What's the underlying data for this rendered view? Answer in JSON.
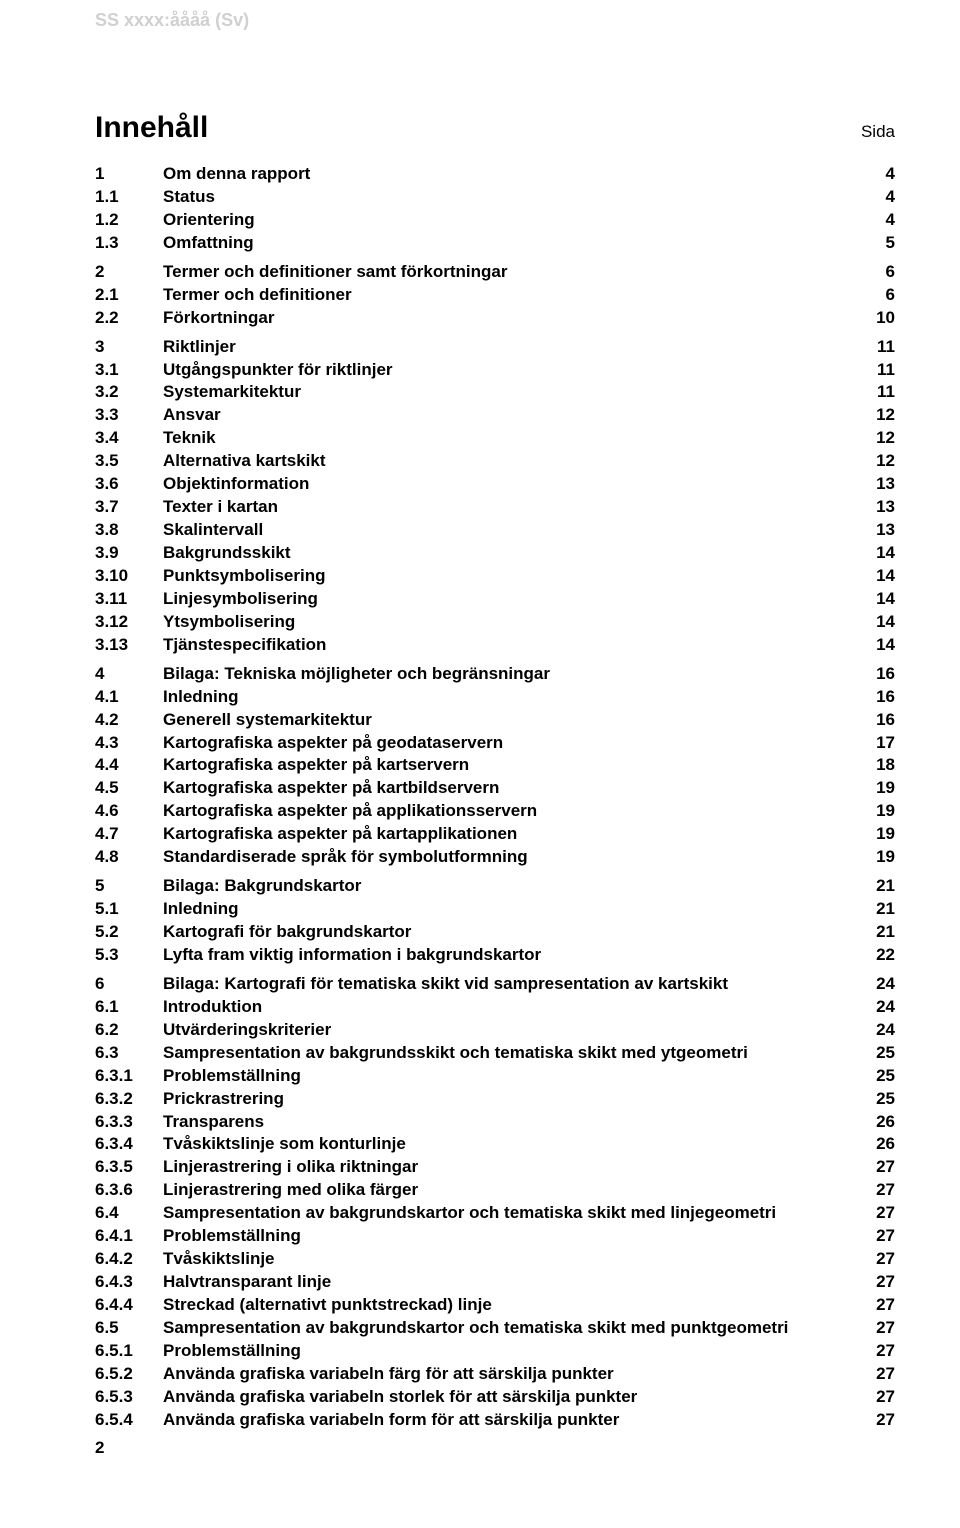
{
  "doc_id": "SS xxxx:åååå (Sv)",
  "heading": "Innehåll",
  "sida_label": "Sida",
  "page_number": "2",
  "groups": [
    {
      "entries": [
        {
          "num": "1",
          "title": "Om denna rapport",
          "page": "4"
        },
        {
          "num": "1.1",
          "title": "Status",
          "page": "4"
        },
        {
          "num": "1.2",
          "title": "Orientering",
          "page": "4"
        },
        {
          "num": "1.3",
          "title": "Omfattning",
          "page": "5"
        }
      ]
    },
    {
      "entries": [
        {
          "num": "2",
          "title": "Termer och definitioner samt förkortningar",
          "page": "6"
        },
        {
          "num": "2.1",
          "title": "Termer och definitioner",
          "page": "6"
        },
        {
          "num": "2.2",
          "title": "Förkortningar",
          "page": "10"
        }
      ]
    },
    {
      "entries": [
        {
          "num": "3",
          "title": "Riktlinjer",
          "page": "11"
        },
        {
          "num": "3.1",
          "title": "Utgångspunkter för riktlinjer",
          "page": "11"
        },
        {
          "num": "3.2",
          "title": "Systemarkitektur",
          "page": "11"
        },
        {
          "num": "3.3",
          "title": "Ansvar",
          "page": "12"
        },
        {
          "num": "3.4",
          "title": "Teknik",
          "page": "12"
        },
        {
          "num": "3.5",
          "title": "Alternativa kartskikt",
          "page": "12"
        },
        {
          "num": "3.6",
          "title": "Objektinformation",
          "page": "13"
        },
        {
          "num": "3.7",
          "title": "Texter i kartan",
          "page": "13"
        },
        {
          "num": "3.8",
          "title": "Skalintervall",
          "page": "13"
        },
        {
          "num": "3.9",
          "title": "Bakgrundsskikt",
          "page": "14"
        },
        {
          "num": "3.10",
          "title": "Punktsymbolisering",
          "page": "14"
        },
        {
          "num": "3.11",
          "title": "Linjesymbolisering",
          "page": "14"
        },
        {
          "num": "3.12",
          "title": "Ytsymbolisering",
          "page": "14"
        },
        {
          "num": "3.13",
          "title": "Tjänstespecifikation",
          "page": "14"
        }
      ]
    },
    {
      "entries": [
        {
          "num": "4",
          "title": "Bilaga: Tekniska möjligheter och begränsningar",
          "page": "16"
        },
        {
          "num": "4.1",
          "title": "Inledning",
          "page": "16"
        },
        {
          "num": "4.2",
          "title": "Generell systemarkitektur",
          "page": "16"
        },
        {
          "num": "4.3",
          "title": "Kartografiska aspekter på geodataservern",
          "page": "17"
        },
        {
          "num": "4.4",
          "title": "Kartografiska aspekter på kartservern",
          "page": "18"
        },
        {
          "num": "4.5",
          "title": "Kartografiska aspekter på kartbildservern",
          "page": "19"
        },
        {
          "num": "4.6",
          "title": "Kartografiska aspekter på applikationsservern",
          "page": "19"
        },
        {
          "num": "4.7",
          "title": "Kartografiska aspekter på kartapplikationen",
          "page": "19"
        },
        {
          "num": "4.8",
          "title": "Standardiserade språk för symbolutformning",
          "page": "19"
        }
      ]
    },
    {
      "entries": [
        {
          "num": "5",
          "title": "Bilaga: Bakgrundskartor",
          "page": "21"
        },
        {
          "num": "5.1",
          "title": "Inledning",
          "page": "21"
        },
        {
          "num": "5.2",
          "title": "Kartografi för bakgrundskartor",
          "page": "21"
        },
        {
          "num": "5.3",
          "title": "Lyfta fram viktig information i bakgrundskartor",
          "page": "22"
        }
      ]
    },
    {
      "entries": [
        {
          "num": "6",
          "title": "Bilaga: Kartografi för tematiska skikt vid sampresentation av kartskikt",
          "page": "24"
        },
        {
          "num": "6.1",
          "title": "Introduktion",
          "page": "24"
        },
        {
          "num": "6.2",
          "title": "Utvärderingskriterier",
          "page": "24"
        },
        {
          "num": "6.3",
          "title": "Sampresentation av bakgrundsskikt och tematiska skikt med ytgeometri",
          "page": "25"
        },
        {
          "num": "6.3.1",
          "title": "Problemställning",
          "page": "25"
        },
        {
          "num": "6.3.2",
          "title": "Prickrastrering",
          "page": "25"
        },
        {
          "num": "6.3.3",
          "title": "Transparens",
          "page": "26"
        },
        {
          "num": "6.3.4",
          "title": "Tvåskiktslinje som konturlinje",
          "page": "26"
        },
        {
          "num": "6.3.5",
          "title": "Linjerastrering i olika riktningar",
          "page": "27"
        },
        {
          "num": "6.3.6",
          "title": "Linjerastrering med olika färger",
          "page": "27"
        },
        {
          "num": "6.4",
          "title": "Sampresentation av bakgrundskartor och tematiska skikt med linjegeometri",
          "page": "27"
        },
        {
          "num": "6.4.1",
          "title": "Problemställning",
          "page": "27"
        },
        {
          "num": "6.4.2",
          "title": "Tvåskiktslinje",
          "page": "27"
        },
        {
          "num": "6.4.3",
          "title": "Halvtransparant linje",
          "page": "27"
        },
        {
          "num": "6.4.4",
          "title": "Streckad (alternativt punktstreckad) linje",
          "page": "27"
        },
        {
          "num": "6.5",
          "title": "Sampresentation av bakgrundskartor och tematiska skikt med punktgeometri",
          "page": "27"
        },
        {
          "num": "6.5.1",
          "title": "Problemställning",
          "page": "27"
        },
        {
          "num": "6.5.2",
          "title": "Använda grafiska variabeln färg för att särskilja punkter",
          "page": "27"
        },
        {
          "num": "6.5.3",
          "title": "Använda grafiska variabeln storlek för att särskilja punkter",
          "page": "27"
        },
        {
          "num": "6.5.4",
          "title": "Använda grafiska variabeln form för att särskilja punkter",
          "page": "27"
        }
      ]
    }
  ]
}
